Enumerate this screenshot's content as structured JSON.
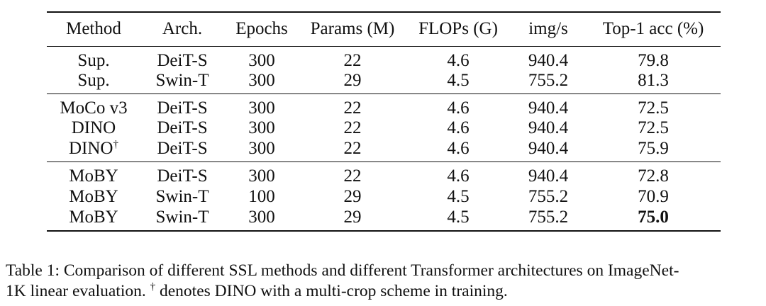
{
  "table": {
    "headers": [
      "Method",
      "Arch.",
      "Epochs",
      "Params (M)",
      "FLOPs (G)",
      "img/s",
      "Top-1 acc (%)"
    ],
    "groups": [
      [
        {
          "method": "Sup.",
          "arch": "DeiT-S",
          "epochs": "300",
          "params": "22",
          "flops": "4.6",
          "imgs": "940.4",
          "acc": "79.8"
        },
        {
          "method": "Sup.",
          "arch": "Swin-T",
          "epochs": "300",
          "params": "29",
          "flops": "4.5",
          "imgs": "755.2",
          "acc": "81.3"
        }
      ],
      [
        {
          "method": "MoCo v3",
          "arch": "DeiT-S",
          "epochs": "300",
          "params": "22",
          "flops": "4.6",
          "imgs": "940.4",
          "acc": "72.5"
        },
        {
          "method": "DINO",
          "arch": "DeiT-S",
          "epochs": "300",
          "params": "22",
          "flops": "4.6",
          "imgs": "940.4",
          "acc": "72.5"
        },
        {
          "method": "DINO",
          "method_mark": "†",
          "arch": "DeiT-S",
          "epochs": "300",
          "params": "22",
          "flops": "4.6",
          "imgs": "940.4",
          "acc": "75.9"
        }
      ],
      [
        {
          "method": "MoBY",
          "arch": "DeiT-S",
          "epochs": "300",
          "params": "22",
          "flops": "4.6",
          "imgs": "940.4",
          "acc": "72.8"
        },
        {
          "method": "MoBY",
          "arch": "Swin-T",
          "epochs": "100",
          "params": "29",
          "flops": "4.5",
          "imgs": "755.2",
          "acc": "70.9"
        },
        {
          "method": "MoBY",
          "arch": "Swin-T",
          "epochs": "300",
          "params": "29",
          "flops": "4.5",
          "imgs": "755.2",
          "acc": "75.0",
          "acc_bold": true
        }
      ]
    ]
  },
  "caption": {
    "line1": "Table 1: Comparison of different SSL methods and different Transformer architectures on ImageNet-",
    "line2_pre": "1K linear evaluation. ",
    "dagger": "†",
    "line2_post": " denotes DINO with a multi-crop scheme in training."
  }
}
